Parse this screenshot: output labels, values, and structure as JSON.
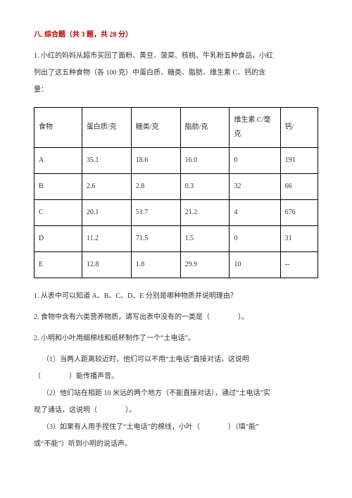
{
  "sectionTitle": "八. 综合题（共 3 题，共 28 分）",
  "intro": {
    "line1": "1. 小红的妈妈从超市买回了面粉、黄豆、菠菜、核桃、牛乳粉五种食品，小红",
    "line2": "列出了这五种食物（各 100 克）中蛋白质、糖类、脂肪、维生素 C、钙的含",
    "line3": "量："
  },
  "table": {
    "columns": [
      "食物",
      "蛋白质/克",
      "糖类/克",
      "脂肪/克",
      "维生素 C/毫克",
      "钙/"
    ],
    "widths": [
      72,
      72,
      72,
      72,
      78,
      50
    ],
    "rows": [
      [
        "A",
        "35.1",
        "18.6",
        "16.0",
        "0",
        "191"
      ],
      [
        "B",
        "2.6",
        "2.8",
        "0.3",
        "32",
        "66"
      ],
      [
        "C",
        "20.1",
        "51.7",
        "21.2",
        "4",
        "676"
      ],
      [
        "D",
        "11.2",
        "71.5",
        "1.5",
        "0",
        "31"
      ],
      [
        "E",
        "12.8",
        "1.8",
        "29.9",
        "10",
        "--"
      ]
    ]
  },
  "q1_1": "1. 从表中可以知道 A、B、C、D、E 分别是哪种物质并说明理由？",
  "q1_2": "2. 食物中含有六类营养物质，请写出表中没有的一类是（　　　　）。",
  "q2_title": "2. 小明和小叶用细棉线和纸杯制作了一个“土电话”。",
  "q2_1a": "（1）当两人距离较近时，他们可以不用“土电话”直接对话，这说明",
  "q2_1b": "（　　　　）能传播声音。",
  "q2_2a": "（2）他们站在相距 10 米远的两个地方（不能直接对话），通过“土电话”实",
  "q2_2b": "现了通话，这说明（　　　　）。",
  "q2_3a": "（3）如果有人用手捏住了“土电话”的棉线，小叶（　　　　）（填“能”",
  "q2_3b": "或“不能”）听到小明的说话声。"
}
